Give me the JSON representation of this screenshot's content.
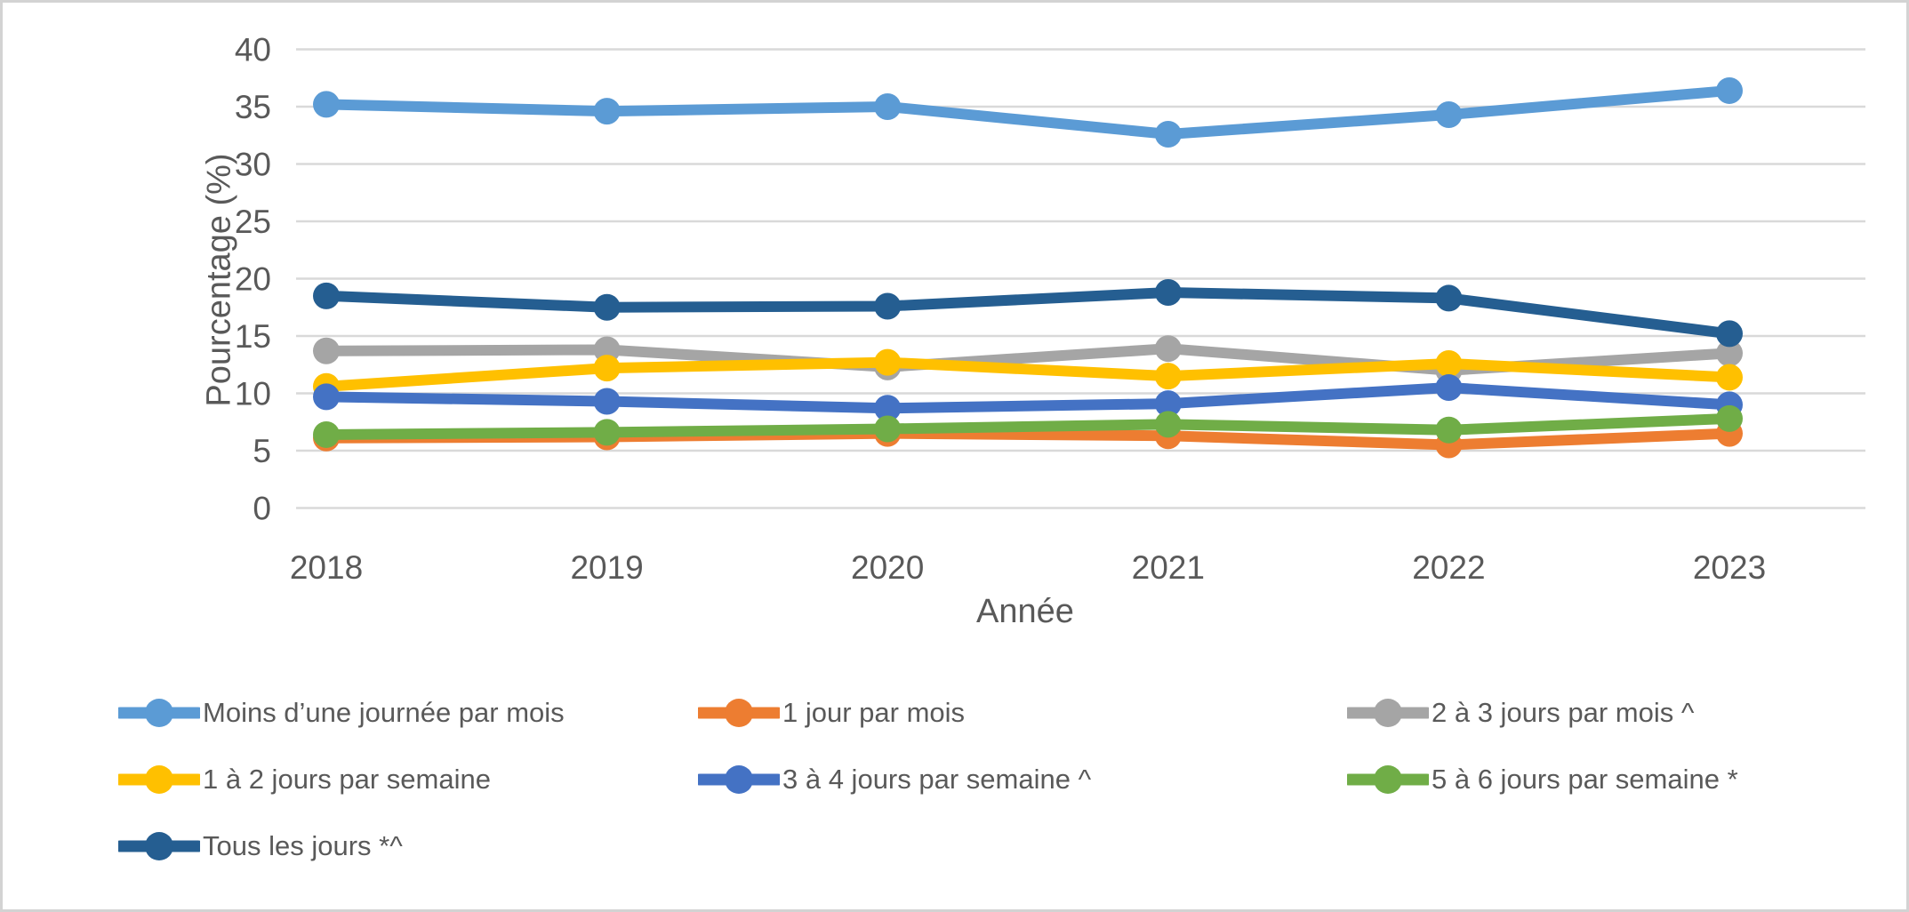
{
  "chart": {
    "y_axis_title": "Pourcentage (%)",
    "x_axis_title": "Année"
  },
  "style": {
    "background_color": "#FFFFFF",
    "border_color": "#D3D3D3",
    "gridline_color": "#D9D9D9",
    "text_color": "#595959"
  },
  "chart_data": {
    "type": "line",
    "title": "",
    "xlabel": "Année",
    "ylabel": "Pourcentage (%)",
    "categories": [
      "2018",
      "2019",
      "2020",
      "2021",
      "2022",
      "2023"
    ],
    "ylim": [
      0,
      40
    ],
    "ytick_step": 5,
    "grid": true,
    "legend_position": "bottom",
    "marker": "circle",
    "series": [
      {
        "name": "Moins d’une journée par mois",
        "color": "#5B9BD5",
        "values": [
          35.2,
          34.6,
          35.0,
          32.6,
          34.3,
          36.4
        ]
      },
      {
        "name": "1 jour par mois",
        "color": "#ED7D31",
        "values": [
          6.1,
          6.2,
          6.5,
          6.3,
          5.5,
          6.5
        ]
      },
      {
        "name": "2 à 3 jours par mois ^",
        "color": "#A5A5A5",
        "values": [
          13.7,
          13.8,
          12.3,
          13.9,
          12.0,
          13.5
        ]
      },
      {
        "name": "1 à 2 jours par semaine",
        "color": "#FFC000",
        "values": [
          10.6,
          12.2,
          12.7,
          11.5,
          12.6,
          11.4
        ]
      },
      {
        "name": "3 à 4 jours par semaine ^",
        "color": "#4472C4",
        "values": [
          9.7,
          9.3,
          8.7,
          9.1,
          10.5,
          9.0
        ]
      },
      {
        "name": "5 à 6 jours par semaine *",
        "color": "#70AD47",
        "values": [
          6.4,
          6.6,
          6.9,
          7.3,
          6.8,
          7.8
        ]
      },
      {
        "name": "Tous les jours *^",
        "color": "#255E91",
        "values": [
          18.5,
          17.5,
          17.6,
          18.8,
          18.3,
          15.2
        ]
      }
    ]
  }
}
